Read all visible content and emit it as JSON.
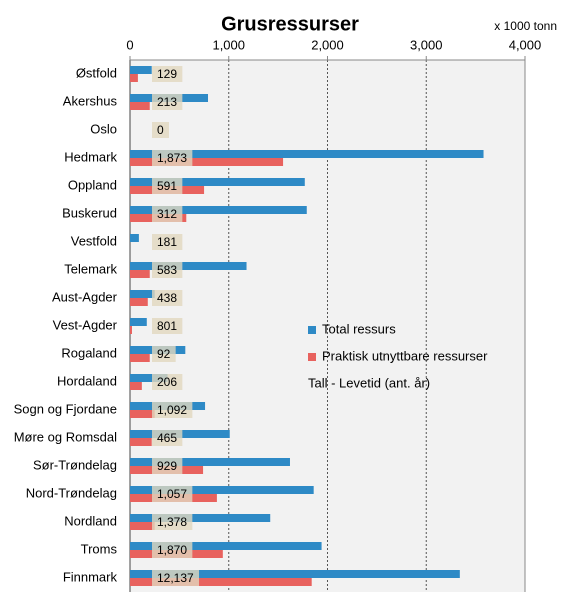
{
  "chart_data": {
    "type": "hbar",
    "title": "Grusressurser",
    "unit_label": "x 1000 tonn",
    "categories": [
      "Østfold",
      "Akershus",
      "Oslo",
      "Hedmark",
      "Oppland",
      "Buskerud",
      "Vestfold",
      "Telemark",
      "Aust-Agder",
      "Vest-Agder",
      "Rogaland",
      "Hordaland",
      "Sogn og Fjordane",
      "Møre og Romsdal",
      "Sør-Trøndelag",
      "Nord-Trøndelag",
      "Nordland",
      "Troms",
      "Finnmark"
    ],
    "series": [
      {
        "name": "Total ressurs",
        "color": "#2e8ac6",
        "values": [
          220,
          790,
          0,
          3580,
          1770,
          1790,
          90,
          1180,
          250,
          170,
          560,
          380,
          760,
          1010,
          1620,
          1860,
          1420,
          1940,
          3340
        ]
      },
      {
        "name": "Praktisk utnyttbare ressurser",
        "color": "#e8625e",
        "values": [
          80,
          200,
          0,
          1550,
          750,
          570,
          0,
          200,
          180,
          20,
          200,
          120,
          250,
          220,
          740,
          880,
          250,
          940,
          1840
        ]
      }
    ],
    "lifetime": {
      "name": "Tall - Levetid (ant. år)",
      "values": [
        129,
        213,
        0,
        1873,
        591,
        312,
        181,
        583,
        438,
        801,
        92,
        206,
        1092,
        465,
        929,
        1057,
        1378,
        1870,
        12137
      ],
      "value_labels": [
        "129",
        "213",
        "0",
        "1,873",
        "591",
        "312",
        "181",
        "583",
        "438",
        "801",
        "92",
        "206",
        "1,092",
        "465",
        "929",
        "1,057",
        "1,378",
        "1,870",
        "12,137"
      ]
    },
    "xlim": [
      0,
      4000
    ],
    "xticks": [
      0,
      {
        "value": 1000,
        "label": "1,000"
      },
      {
        "value": 2000,
        "label": "2,000"
      },
      {
        "value": 3000,
        "label": "3,000"
      },
      {
        "value": 4000,
        "label": "4,000"
      }
    ],
    "grid": true,
    "legend_position": "right"
  }
}
